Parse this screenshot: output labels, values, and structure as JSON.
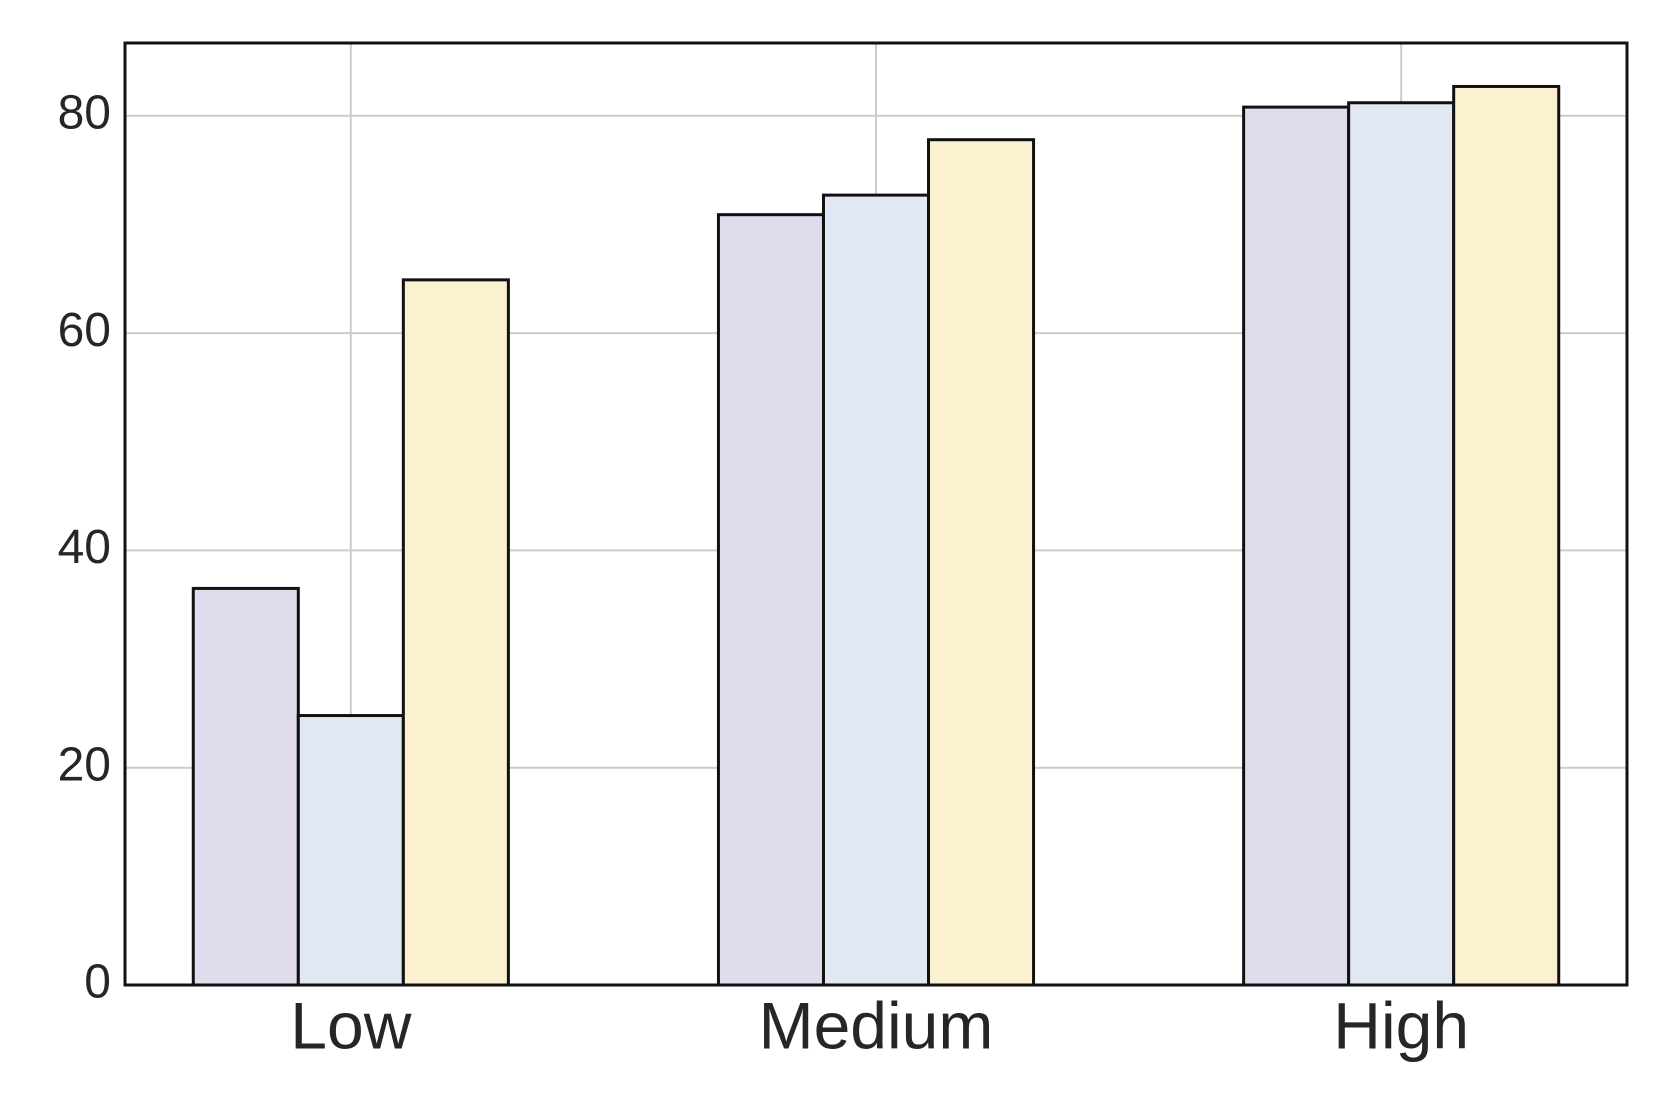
{
  "chart_data": {
    "type": "bar",
    "categories": [
      "Low",
      "Medium",
      "High"
    ],
    "series": [
      {
        "color": "#dfdced",
        "values": [
          36.5,
          70.9,
          80.8
        ]
      },
      {
        "color": "#e1e8f4",
        "values": [
          24.8,
          72.7,
          81.2
        ]
      },
      {
        "color": "#fbf1d0",
        "values": [
          64.9,
          77.8,
          82.7
        ]
      }
    ],
    "ylim": [
      0,
      86.7
    ],
    "yticks": [
      0,
      20,
      40,
      60,
      80
    ],
    "grid": true
  }
}
